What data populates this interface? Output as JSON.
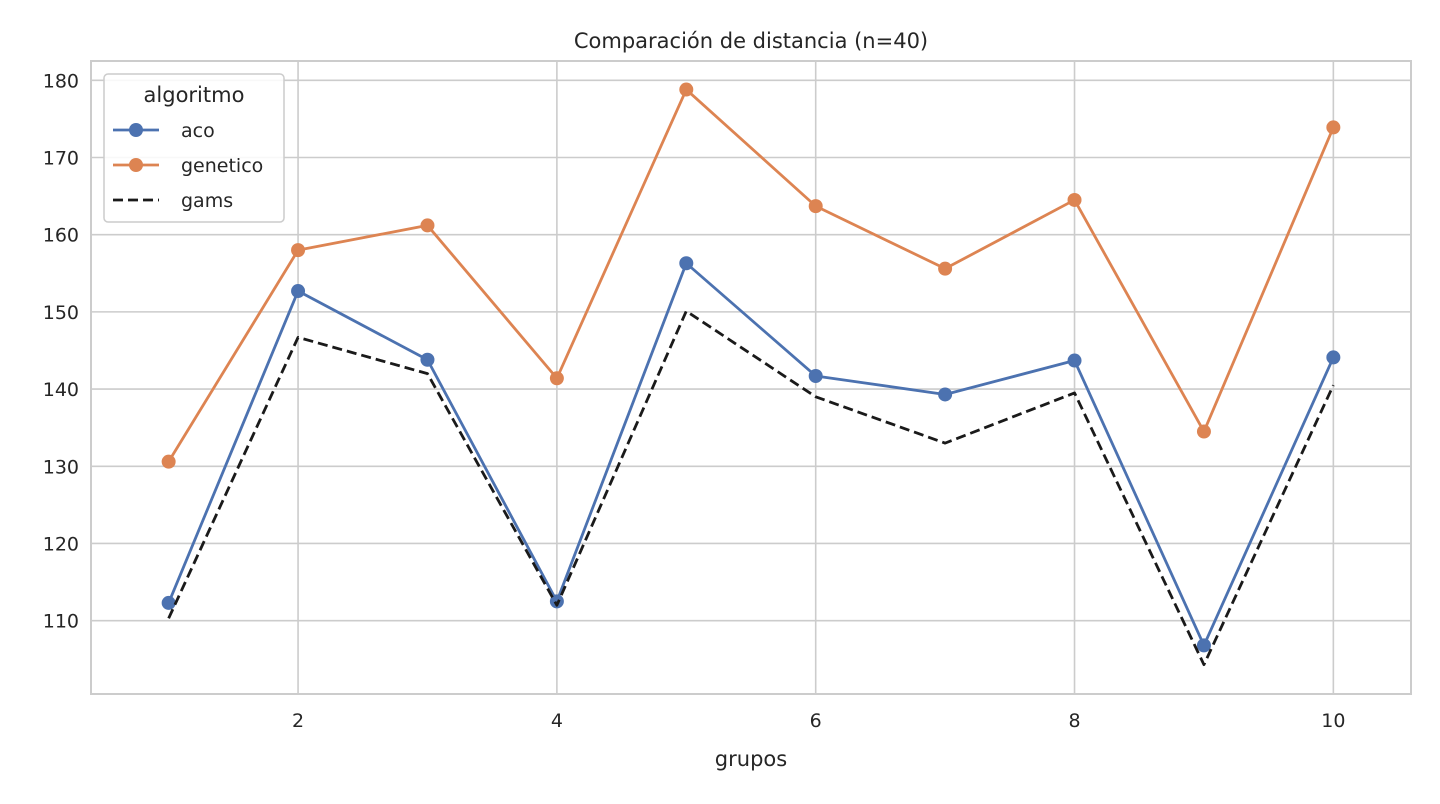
{
  "chart_data": {
    "type": "line",
    "title": "Comparación de distancia (n=40)",
    "xlabel": "grupos",
    "ylabel": "",
    "x": [
      1,
      2,
      3,
      4,
      5,
      6,
      7,
      8,
      9,
      10
    ],
    "xlim": [
      0.4,
      10.6
    ],
    "ylim": [
      100.5,
      182.5
    ],
    "xticks": [
      2,
      4,
      6,
      8,
      10
    ],
    "yticks": [
      110,
      120,
      130,
      140,
      150,
      160,
      170,
      180
    ],
    "grid": true,
    "legend": {
      "title": "algoritmo",
      "position": "top-left"
    },
    "series": [
      {
        "name": "aco",
        "color": "#4c72b0",
        "style": "solid",
        "marker": "circle",
        "values": [
          112.3,
          152.7,
          143.8,
          112.5,
          156.3,
          141.7,
          139.3,
          143.7,
          106.8,
          144.1
        ]
      },
      {
        "name": "genetico",
        "color": "#dd8452",
        "style": "solid",
        "marker": "circle",
        "values": [
          130.6,
          158.0,
          161.2,
          141.4,
          178.8,
          163.7,
          155.6,
          164.5,
          134.5,
          173.9
        ]
      },
      {
        "name": "gams",
        "color": "#1a1a1a",
        "style": "dashed",
        "marker": "none",
        "values": [
          110.3,
          146.7,
          142.0,
          112.0,
          150.1,
          139.0,
          133.0,
          139.5,
          104.3,
          140.5
        ]
      }
    ]
  }
}
